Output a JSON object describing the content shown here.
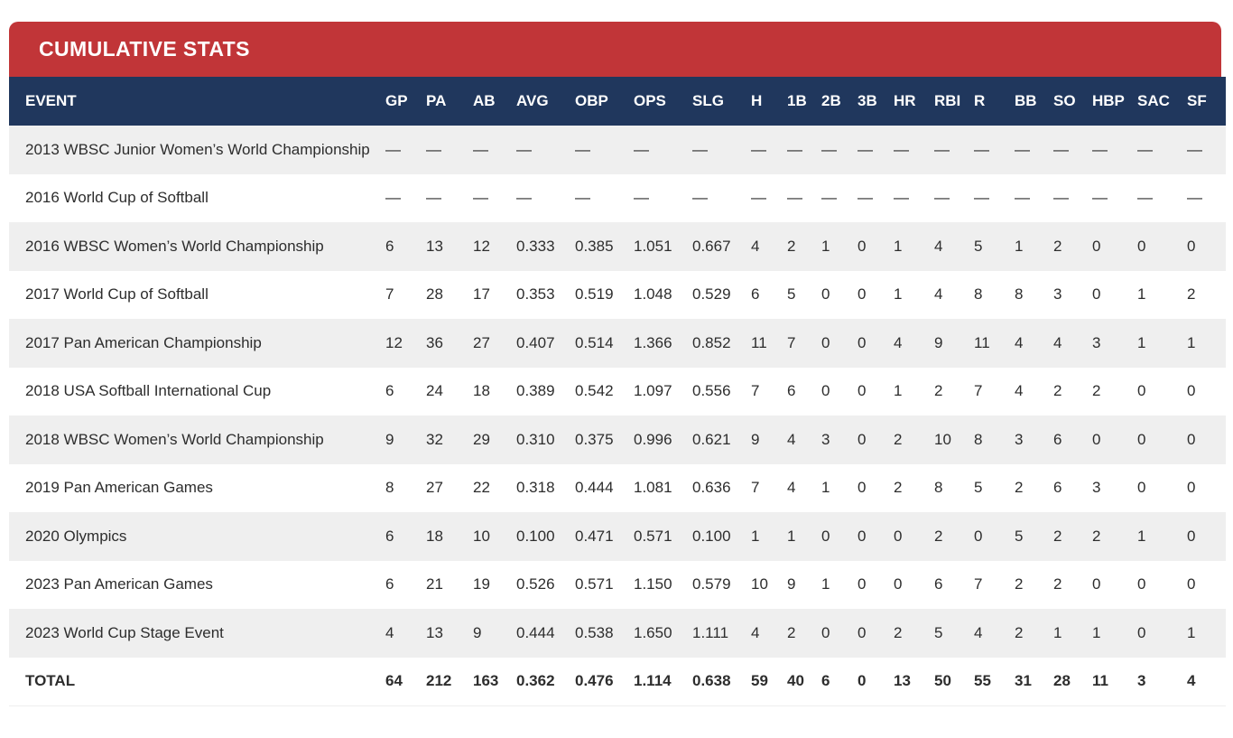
{
  "panel": {
    "title": "CUMULATIVE STATS",
    "colors": {
      "banner_red": "#c13538",
      "header_navy": "#20375d",
      "row_stripe": "#efefef",
      "text": "#2d2d2d"
    }
  },
  "table": {
    "columns": [
      "EVENT",
      "GP",
      "PA",
      "AB",
      "AVG",
      "OBP",
      "OPS",
      "SLG",
      "H",
      "1B",
      "2B",
      "3B",
      "HR",
      "RBI",
      "R",
      "BB",
      "SO",
      "HBP",
      "SAC",
      "SF"
    ],
    "rows": [
      {
        "event": "2013 WBSC Junior Women’s World Championship",
        "stats": [
          "—",
          "—",
          "—",
          "—",
          "—",
          "—",
          "—",
          "—",
          "—",
          "—",
          "—",
          "—",
          "—",
          "—",
          "—",
          "—",
          "—",
          "—",
          "—"
        ]
      },
      {
        "event": "2016 World Cup of Softball",
        "stats": [
          "—",
          "—",
          "—",
          "—",
          "—",
          "—",
          "—",
          "—",
          "—",
          "—",
          "—",
          "—",
          "—",
          "—",
          "—",
          "—",
          "—",
          "—",
          "—"
        ]
      },
      {
        "event": "2016 WBSC Women’s World Championship",
        "stats": [
          "6",
          "13",
          "12",
          "0.333",
          "0.385",
          "1.051",
          "0.667",
          "4",
          "2",
          "1",
          "0",
          "1",
          "4",
          "5",
          "1",
          "2",
          "0",
          "0",
          "0"
        ]
      },
      {
        "event": "2017 World Cup of Softball",
        "stats": [
          "7",
          "28",
          "17",
          "0.353",
          "0.519",
          "1.048",
          "0.529",
          "6",
          "5",
          "0",
          "0",
          "1",
          "4",
          "8",
          "8",
          "3",
          "0",
          "1",
          "2"
        ]
      },
      {
        "event": "2017 Pan American Championship",
        "stats": [
          "12",
          "36",
          "27",
          "0.407",
          "0.514",
          "1.366",
          "0.852",
          "11",
          "7",
          "0",
          "0",
          "4",
          "9",
          "11",
          "4",
          "4",
          "3",
          "1",
          "1"
        ]
      },
      {
        "event": "2018 USA Softball International Cup",
        "stats": [
          "6",
          "24",
          "18",
          "0.389",
          "0.542",
          "1.097",
          "0.556",
          "7",
          "6",
          "0",
          "0",
          "1",
          "2",
          "7",
          "4",
          "2",
          "2",
          "0",
          "0"
        ]
      },
      {
        "event": "2018 WBSC Women’s World Championship",
        "stats": [
          "9",
          "32",
          "29",
          "0.310",
          "0.375",
          "0.996",
          "0.621",
          "9",
          "4",
          "3",
          "0",
          "2",
          "10",
          "8",
          "3",
          "6",
          "0",
          "0",
          "0"
        ]
      },
      {
        "event": "2019 Pan American Games",
        "stats": [
          "8",
          "27",
          "22",
          "0.318",
          "0.444",
          "1.081",
          "0.636",
          "7",
          "4",
          "1",
          "0",
          "2",
          "8",
          "5",
          "2",
          "6",
          "3",
          "0",
          "0"
        ]
      },
      {
        "event": "2020 Olympics",
        "stats": [
          "6",
          "18",
          "10",
          "0.100",
          "0.471",
          "0.571",
          "0.100",
          "1",
          "1",
          "0",
          "0",
          "0",
          "2",
          "0",
          "5",
          "2",
          "2",
          "1",
          "0"
        ]
      },
      {
        "event": "2023 Pan American Games",
        "stats": [
          "6",
          "21",
          "19",
          "0.526",
          "0.571",
          "1.150",
          "0.579",
          "10",
          "9",
          "1",
          "0",
          "0",
          "6",
          "7",
          "2",
          "2",
          "0",
          "0",
          "0"
        ]
      },
      {
        "event": "2023 World Cup Stage Event",
        "stats": [
          "4",
          "13",
          "9",
          "0.444",
          "0.538",
          "1.650",
          "1.111",
          "4",
          "2",
          "0",
          "0",
          "2",
          "5",
          "4",
          "2",
          "1",
          "1",
          "0",
          "1"
        ]
      }
    ],
    "total": {
      "label": "TOTAL",
      "stats": [
        "64",
        "212",
        "163",
        "0.362",
        "0.476",
        "1.114",
        "0.638",
        "59",
        "40",
        "6",
        "0",
        "13",
        "50",
        "55",
        "31",
        "28",
        "11",
        "3",
        "4"
      ]
    }
  }
}
